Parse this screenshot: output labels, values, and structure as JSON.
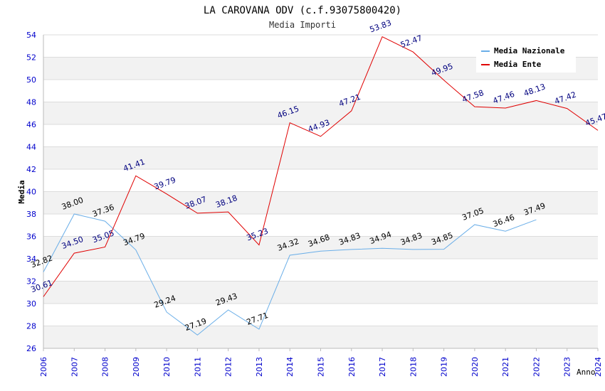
{
  "chart_data": {
    "type": "line",
    "title": "LA CAROVANA ODV (c.f.93075800420)",
    "subtitle": "Media Importi",
    "xlabel": "Anno",
    "ylabel": "Media",
    "ylim": [
      26,
      54
    ],
    "yticks": [
      "26",
      "28",
      "30",
      "32",
      "34",
      "36",
      "38",
      "40",
      "42",
      "44",
      "46",
      "48",
      "50",
      "52",
      "54"
    ],
    "x": [
      "2006",
      "2007",
      "2008",
      "2009",
      "2010",
      "2011",
      "2012",
      "2013",
      "2014",
      "2015",
      "2016",
      "2017",
      "2018",
      "2019",
      "2020",
      "2021",
      "2022",
      "2023",
      "2024"
    ],
    "grid": true,
    "legend_position": "top-right",
    "series": [
      {
        "name": "Media Nazionale",
        "color": "#6aaee8",
        "label_color": "#000000",
        "values": [
          32.82,
          38.0,
          37.36,
          34.79,
          29.24,
          27.19,
          29.43,
          27.71,
          34.32,
          34.68,
          34.83,
          34.94,
          34.83,
          34.85,
          37.05,
          36.46,
          37.49,
          null,
          null
        ],
        "labels": [
          "32.82",
          "38.00",
          "37.36",
          "34.79",
          "29.24",
          "27.19",
          "29.43",
          "27.71",
          "34.32",
          "34.68",
          "34.83",
          "34.94",
          "34.83",
          "34.85",
          "37.05",
          "36.46",
          "37.49",
          null,
          null
        ]
      },
      {
        "name": "Media Ente",
        "color": "#e00000",
        "label_color": "#00007f",
        "values": [
          30.61,
          34.5,
          35.05,
          41.41,
          39.79,
          38.07,
          38.18,
          35.23,
          46.15,
          44.93,
          47.21,
          53.83,
          52.47,
          49.95,
          47.58,
          47.46,
          48.13,
          47.42,
          45.47
        ],
        "labels": [
          "30.61",
          "34.50",
          "35.05",
          "41.41",
          "39.79",
          "38.07",
          "38.18",
          "35.23",
          "46.15",
          "44.93",
          "47.21",
          "53.83",
          "52.47",
          "49.95",
          "47.58",
          "47.46",
          "48.13",
          "47.42",
          "45.47"
        ]
      }
    ],
    "colors": {
      "axis_text": "#0000cc",
      "band": "#f2f2f2",
      "gridline": "#dcdcdc"
    }
  }
}
